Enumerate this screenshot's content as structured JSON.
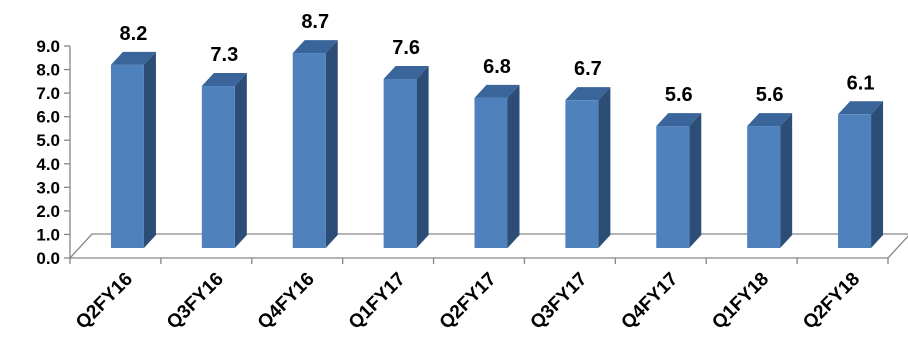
{
  "chart_data": {
    "type": "bar",
    "categories": [
      "Q2FY16",
      "Q3FY16",
      "Q4FY16",
      "Q1FY17",
      "Q2FY17",
      "Q3FY17",
      "Q4FY17",
      "Q1FY18",
      "Q2FY18"
    ],
    "values": [
      8.2,
      7.3,
      8.7,
      7.6,
      6.8,
      6.7,
      5.6,
      5.6,
      6.1
    ],
    "data_labels": [
      "8.2",
      "7.3",
      "8.7",
      "7.6",
      "6.8",
      "6.7",
      "5.6",
      "5.6",
      "6.1"
    ],
    "y_ticks": [
      "0.0",
      "1.0",
      "2.0",
      "3.0",
      "4.0",
      "5.0",
      "6.0",
      "7.0",
      "8.0",
      "9.0"
    ],
    "ylim": [
      0,
      9
    ],
    "title": "",
    "xlabel": "",
    "ylabel": "",
    "grid": false,
    "legend": "none",
    "style": "3d-column",
    "colors": {
      "bar_front": "#4F81BD",
      "bar_side": "#2C4D75",
      "bar_top": "#3A659A",
      "axis": "#868686"
    }
  }
}
